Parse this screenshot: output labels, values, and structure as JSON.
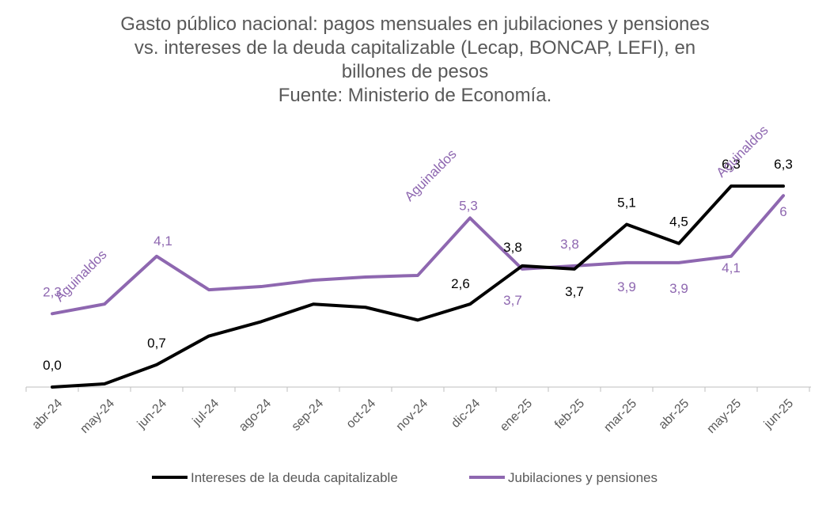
{
  "chart_data": {
    "type": "line",
    "title_lines": [
      "Gasto público nacional: pagos mensuales en jubilaciones y pensiones",
      "vs. intereses de la deuda capitalizable (Lecap, BONCAP, LEFI), en",
      "billones de pesos",
      "Fuente: Ministerio de Economía."
    ],
    "categories": [
      "abr-24",
      "may-24",
      "jun-24",
      "jul-24",
      "ago-24",
      "sep-24",
      "oct-24",
      "nov-24",
      "dic-24",
      "ene-25",
      "feb-25",
      "mar-25",
      "abr-25",
      "may-25",
      "jun-25"
    ],
    "ylim": [
      0,
      7
    ],
    "grid": false,
    "legend_position": "bottom",
    "series": [
      {
        "name": "Intereses de la deuda capitalizable",
        "color": "#000000",
        "values": [
          0.0,
          0.1,
          0.7,
          1.6,
          2.05,
          2.6,
          2.5,
          2.1,
          2.6,
          3.8,
          3.7,
          5.1,
          4.5,
          6.3,
          6.3
        ],
        "labels": [
          "0,0",
          null,
          "0,7",
          null,
          null,
          null,
          null,
          null,
          "2,6",
          "3,8",
          "3,7",
          "5,1",
          "4,5",
          "6,3",
          "6,3"
        ]
      },
      {
        "name": "Jubilaciones y pensiones",
        "color": "#8e67b0",
        "values": [
          2.3,
          2.6,
          4.1,
          3.05,
          3.15,
          3.35,
          3.45,
          3.5,
          5.3,
          3.7,
          3.8,
          3.9,
          3.9,
          4.1,
          6.0
        ],
        "labels": [
          "2,3",
          null,
          "4,1",
          null,
          null,
          null,
          null,
          null,
          "5,3",
          "3,7",
          "3,8",
          "3,9",
          "3,9",
          "4,1",
          "6"
        ]
      }
    ],
    "annotations": [
      {
        "text": "Aguinaldos",
        "series": 1,
        "index": 1
      },
      {
        "text": "Aguinaldos",
        "series": 1,
        "index": 8
      },
      {
        "text": "Aguinaldos",
        "series": 1,
        "index": 14
      }
    ]
  }
}
